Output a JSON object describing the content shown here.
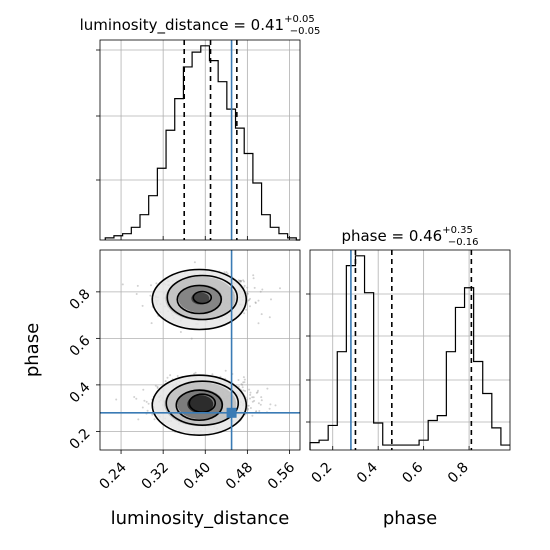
{
  "chart_data": [
    {
      "type": "histogram",
      "panel": "luminosity_distance-marginal",
      "title": "luminosity_distance = 0.41",
      "title_sup": "+0.05",
      "title_sub": "−0.05",
      "xlim": [
        0.2,
        0.58
      ],
      "bin_edges": [
        0.21,
        0.2265,
        0.243,
        0.2595,
        0.276,
        0.2925,
        0.309,
        0.3255,
        0.342,
        0.3585,
        0.375,
        0.3915,
        0.408,
        0.4245,
        0.441,
        0.4575,
        0.474,
        0.4905,
        0.507,
        0.5235,
        0.54,
        0.5565,
        0.573,
        0.58
      ],
      "counts": [
        1,
        2,
        3,
        6,
        12,
        21,
        34,
        52,
        67,
        82,
        89,
        92,
        85,
        75,
        62,
        53,
        41,
        27,
        12,
        6,
        3,
        1,
        0
      ],
      "quantiles": [
        0.36,
        0.41,
        0.46
      ],
      "truth": 0.45,
      "grid": true
    },
    {
      "type": "histogram",
      "panel": "phase-marginal",
      "title": "phase = 0.46",
      "title_sup": "+0.35",
      "title_sub": "−0.16",
      "xlim": [
        0.1,
        0.98
      ],
      "bin_edges": [
        0.1,
        0.14,
        0.18,
        0.22,
        0.26,
        0.3,
        0.34,
        0.38,
        0.42,
        0.46,
        0.5,
        0.54,
        0.58,
        0.62,
        0.66,
        0.7,
        0.74,
        0.78,
        0.82,
        0.86,
        0.9,
        0.94,
        0.98
      ],
      "counts": [
        3,
        4,
        10,
        40,
        75,
        79,
        64,
        11,
        2,
        2,
        2,
        2,
        4,
        12,
        14,
        40,
        58,
        66,
        36,
        23,
        9,
        2
      ],
      "quantiles": [
        0.3,
        0.46,
        0.81
      ],
      "truth": 0.28,
      "grid": true
    },
    {
      "type": "scatter-contour",
      "panel": "phase-vs-luminosity_distance",
      "xlabel": "luminosity_distance",
      "ylabel": "phase",
      "xlim": [
        0.2,
        0.58
      ],
      "ylim": [
        0.12,
        0.98
      ],
      "x_ticks": [
        "0.24",
        "0.32",
        "0.40",
        "0.48",
        "0.56"
      ],
      "y_ticks": [
        "0.2",
        "0.4",
        "0.6",
        "0.8"
      ],
      "modes": [
        {
          "x": 0.4,
          "y": 0.78
        },
        {
          "x": 0.4,
          "y": 0.33
        }
      ],
      "truth": {
        "x": 0.45,
        "y": 0.28
      },
      "grid": true
    },
    {
      "type": "axis",
      "panel": "phase-marginal-x",
      "xlabel": "phase",
      "x_ticks": [
        "0.2",
        "0.4",
        "0.6",
        "0.8"
      ]
    }
  ]
}
